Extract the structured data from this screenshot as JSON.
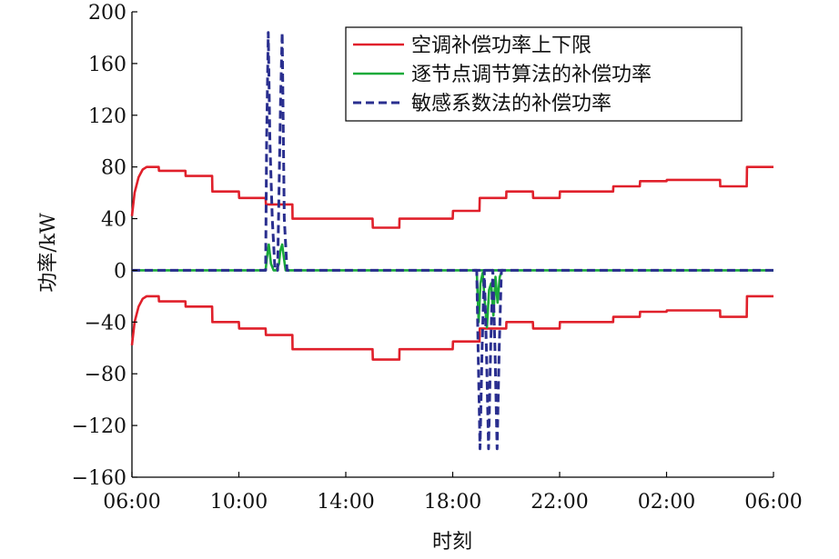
{
  "chart_data": {
    "type": "line",
    "title": "",
    "xlabel": "时刻",
    "ylabel": "功率/kW",
    "x_tick_labels": [
      "06:00",
      "10:00",
      "14:00",
      "18:00",
      "22:00",
      "02:00",
      "06:00"
    ],
    "x_range_hours": [
      6,
      30
    ],
    "ylim": [
      -160,
      200
    ],
    "y_ticks": [
      -160,
      -120,
      -80,
      -40,
      0,
      40,
      80,
      120,
      160,
      200
    ],
    "y_tick_labels": [
      "−160",
      "−120",
      "−80",
      "−40",
      "0",
      "40",
      "80",
      "120",
      "160",
      "200"
    ],
    "grid": false,
    "legend_position": "top-right",
    "series": [
      {
        "name": "空调补偿功率上下限",
        "color": "#e0202b",
        "style": "solid",
        "upper": {
          "x": [
            6,
            6.1,
            6.25,
            6.4,
            6.55,
            6.8,
            7.0,
            7.01,
            8.0,
            8.01,
            9.0,
            9.01,
            10.0,
            10.01,
            11.0,
            11.01,
            12.0,
            12.01,
            15.0,
            15.01,
            16.0,
            16.01,
            18.0,
            18.01,
            19.0,
            19.01,
            20.0,
            20.01,
            21.0,
            21.01,
            22.0,
            22.01,
            24.0,
            24.01,
            25.0,
            25.01,
            26.0,
            26.01,
            28.0,
            28.01,
            29.0,
            29.01,
            30.0
          ],
          "y": [
            42,
            60,
            72,
            78,
            80,
            80,
            80,
            77,
            77,
            73,
            73,
            61,
            61,
            56,
            56,
            51,
            51,
            40,
            40,
            33,
            33,
            40,
            40,
            46,
            46,
            56,
            56,
            61,
            61,
            56,
            56,
            61,
            61,
            65,
            65,
            69,
            69,
            70,
            70,
            65,
            65,
            80,
            80
          ]
        },
        "lower": {
          "x": [
            6,
            6.1,
            6.25,
            6.4,
            6.55,
            6.8,
            7.0,
            7.01,
            8.0,
            8.01,
            9.0,
            9.01,
            10.0,
            10.01,
            11.0,
            11.01,
            12.0,
            12.01,
            15.0,
            15.01,
            16.0,
            16.01,
            18.0,
            18.01,
            19.0,
            19.01,
            20.0,
            20.01,
            21.0,
            21.01,
            22.0,
            22.01,
            24.0,
            24.01,
            25.0,
            25.01,
            26.0,
            26.01,
            28.0,
            28.01,
            29.0,
            29.01,
            30.0
          ],
          "y": [
            -58,
            -40,
            -28,
            -22,
            -20,
            -20,
            -20,
            -24,
            -24,
            -28,
            -28,
            -40,
            -40,
            -45,
            -45,
            -50,
            -50,
            -61,
            -61,
            -69,
            -69,
            -61,
            -61,
            -55,
            -55,
            -45,
            -45,
            -40,
            -40,
            -45,
            -45,
            -40,
            -40,
            -36,
            -36,
            -32,
            -32,
            -31,
            -31,
            -36,
            -36,
            -20,
            -20
          ]
        }
      },
      {
        "name": "逐节点调节算法的补偿功率",
        "color": "#1aaa3a",
        "style": "solid",
        "x": [
          6,
          11.0,
          11.05,
          11.12,
          11.2,
          11.3,
          11.4,
          11.5,
          11.55,
          11.62,
          11.68,
          11.75,
          30
        ],
        "y": [
          0,
          0,
          10,
          20,
          5,
          0,
          0,
          5,
          15,
          20,
          10,
          0,
          0
        ],
        "x2": [
          18.8,
          18.9,
          18.97,
          19.04,
          19.12,
          19.2,
          19.28,
          19.36,
          19.44,
          19.52,
          19.6,
          19.68,
          19.76,
          19.85
        ],
        "y2": [
          0,
          0,
          -40,
          -10,
          -2,
          -25,
          -44,
          -15,
          -10,
          -35,
          -5,
          -25,
          -5,
          0
        ]
      },
      {
        "name": "敏感系数法的补偿功率",
        "color": "#2a2f8f",
        "style": "dashed",
        "x": [
          6,
          11.0,
          11.04,
          11.1,
          11.16,
          11.25,
          11.35,
          11.45,
          11.5,
          11.56,
          11.62,
          11.7,
          11.8,
          30
        ],
        "y": [
          0,
          0,
          100,
          184,
          100,
          40,
          0,
          0,
          60,
          130,
          184,
          40,
          0,
          0
        ],
        "x2": [
          18.8,
          18.9,
          18.95,
          19.02,
          19.1,
          19.18,
          19.26,
          19.34,
          19.42,
          19.5,
          19.58,
          19.66,
          19.74,
          19.82,
          19.9
        ],
        "y2": [
          0,
          0,
          -60,
          -138,
          -60,
          0,
          -60,
          -138,
          -60,
          0,
          -60,
          -138,
          -60,
          0,
          0
        ]
      }
    ]
  }
}
